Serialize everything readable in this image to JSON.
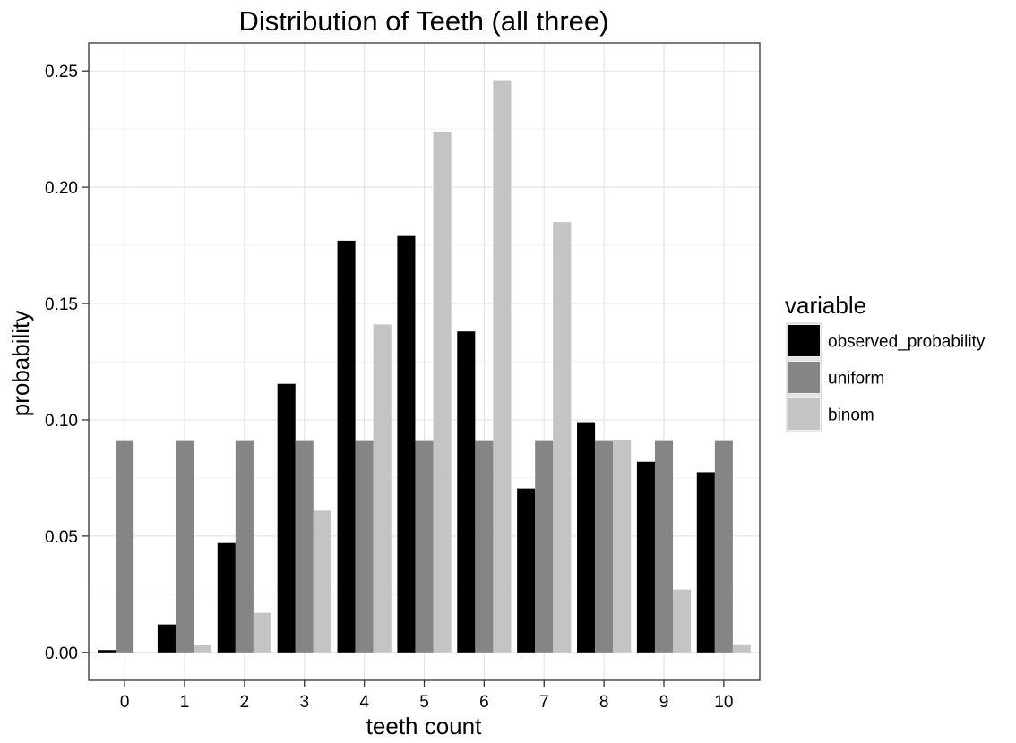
{
  "chart_data": {
    "type": "bar",
    "title": "Distribution of Teeth (all three)",
    "xlabel": "teeth count",
    "ylabel": "probability",
    "categories": [
      "0",
      "1",
      "2",
      "3",
      "4",
      "5",
      "6",
      "7",
      "8",
      "9",
      "10"
    ],
    "ylim": [
      -0.012,
      0.262
    ],
    "yticks": [
      0.0,
      0.05,
      0.1,
      0.15,
      0.2,
      0.25
    ],
    "ytick_labels": [
      "0.00",
      "0.05",
      "0.10",
      "0.15",
      "0.20",
      "0.25"
    ],
    "grid": true,
    "legend": {
      "title": "variable",
      "position": "right"
    },
    "series": [
      {
        "name": "observed_probability",
        "color": "#000000",
        "values": [
          0.001,
          0.012,
          0.047,
          0.1155,
          0.177,
          0.179,
          0.138,
          0.0705,
          0.099,
          0.082,
          0.0775
        ]
      },
      {
        "name": "uniform",
        "color": "#858585",
        "values": [
          0.0909,
          0.0909,
          0.0909,
          0.0909,
          0.0909,
          0.0909,
          0.0909,
          0.0909,
          0.0909,
          0.0909,
          0.0909
        ]
      },
      {
        "name": "binom",
        "color": "#c4c4c4",
        "values": [
          0.0001,
          0.003,
          0.017,
          0.061,
          0.141,
          0.2235,
          0.246,
          0.185,
          0.0915,
          0.027,
          0.0035
        ]
      }
    ]
  }
}
